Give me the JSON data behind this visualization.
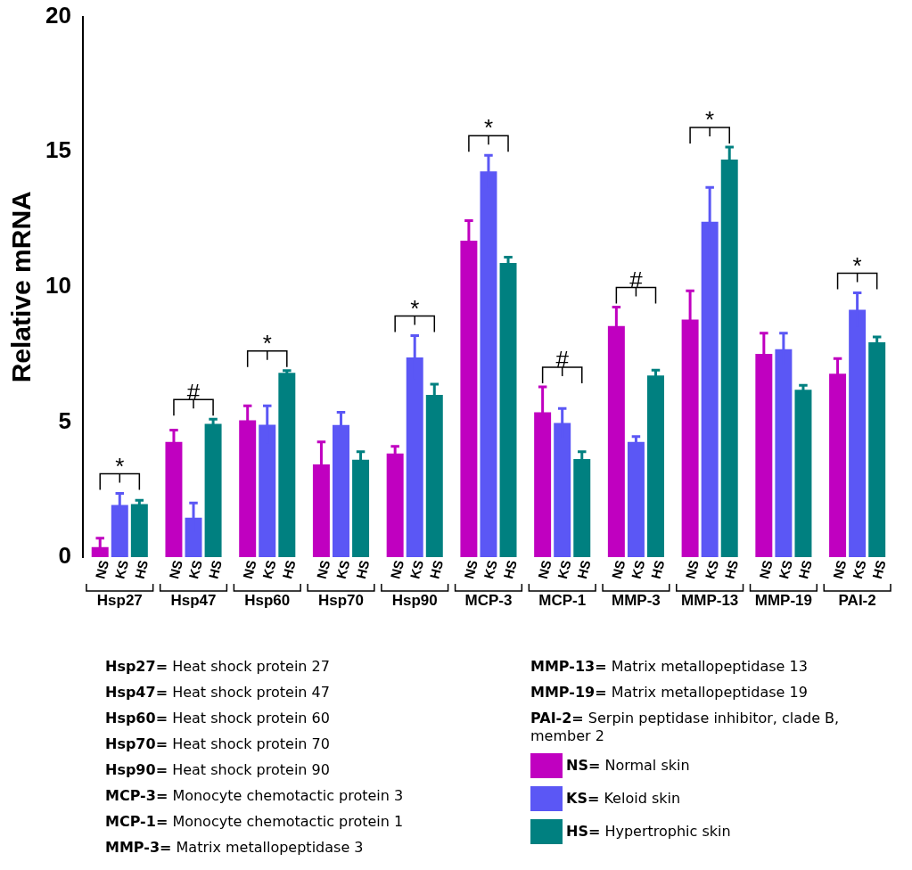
{
  "chart_data": {
    "type": "bar",
    "ylabel": "Relative mRNA",
    "categories": [
      "Hsp27",
      "Hsp47",
      "Hsp60",
      "Hsp70",
      "Hsp90",
      "MCP-3",
      "MCP-1",
      "MMP-3",
      "MMP-13",
      "MMP-19",
      "PAI-2"
    ],
    "series": [
      {
        "name": "NS",
        "color": "#c000c0",
        "values": [
          0.37,
          4.26,
          5.06,
          3.43,
          3.83,
          11.71,
          5.36,
          8.55,
          8.79,
          7.52,
          6.79
        ],
        "errors": [
          0.33,
          0.44,
          0.54,
          0.83,
          0.27,
          0.74,
          0.94,
          0.7,
          1.06,
          0.77,
          0.56
        ]
      },
      {
        "name": "KS",
        "color": "#5b57f5",
        "values": [
          1.93,
          1.46,
          4.9,
          4.89,
          7.39,
          14.27,
          4.96,
          4.26,
          12.41,
          7.69,
          9.15
        ],
        "errors": [
          0.43,
          0.54,
          0.7,
          0.47,
          0.81,
          0.6,
          0.54,
          0.2,
          1.27,
          0.6,
          0.63
        ]
      },
      {
        "name": "HS",
        "color": "#008080",
        "values": [
          1.96,
          4.93,
          6.82,
          3.6,
          6.0,
          10.88,
          3.63,
          6.72,
          14.71,
          6.19,
          7.95
        ],
        "errors": [
          0.14,
          0.17,
          0.08,
          0.3,
          0.4,
          0.22,
          0.27,
          0.2,
          0.46,
          0.17,
          0.2
        ]
      }
    ],
    "ylim": [
      0,
      20
    ],
    "yticks": [
      0,
      5,
      10,
      15,
      20
    ],
    "grid": false,
    "annotations": [
      "*",
      "#",
      "*",
      "*",
      "*",
      "#",
      "#",
      "*",
      "*",
      "Hsp27= Heat shock protein 27",
      "Hsp47= Heat shock protein 47",
      "Hsp60= Heat shock protein 60",
      "Hsp70= Heat shock protein 70",
      "Hsp90= Heat shock protein 90",
      "MCP-3= Monocyte chemotactic protein 3",
      "MCP-1= Monocyte chemotactic protein 1",
      "MMP-3= Matrix metallopeptidase 3",
      "MMP-13= Matrix metallopeptidase 13",
      "MMP-19= Matrix metallopeptidase 19",
      "PAI-2= Serpin peptidase inhibitor, clade B, member 2",
      "NS= Normal skin",
      "KS= Keloid skin",
      "HS= Hypertrophic skin"
    ]
  }
}
